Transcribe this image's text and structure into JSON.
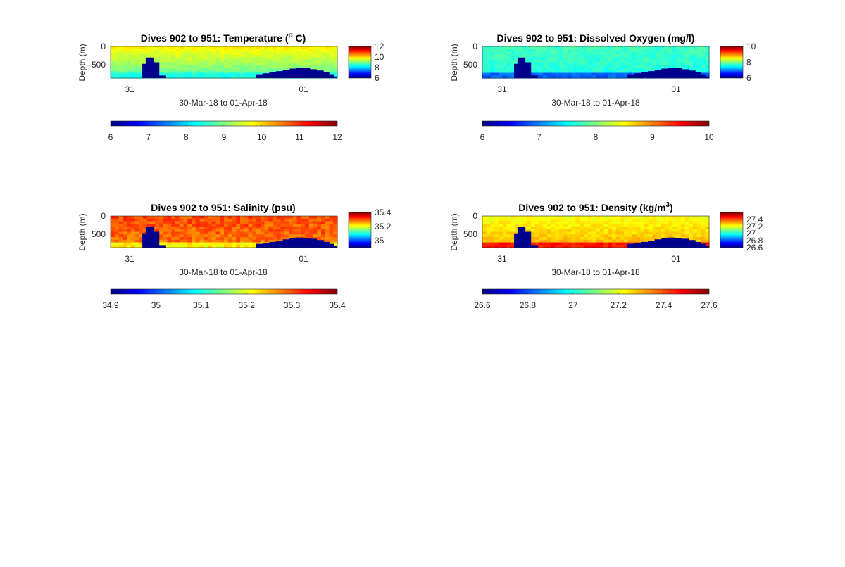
{
  "figure": {
    "colormap": "jet",
    "mask_color": "#00008F",
    "background": "#FFFFFF"
  },
  "chart_data": [
    {
      "type": "heatmap",
      "title": "Dives 902 to 951: Temperature (",
      "title_sup": "o",
      "title_suffix": " C)",
      "xlabel": "30-Mar-18 to 01-Apr-18",
      "ylabel": "Depth (m)",
      "x_ticks": [
        "31",
        "01"
      ],
      "y_ticks": [
        "0",
        "500"
      ],
      "ylim": [
        0,
        800
      ],
      "small_cbar": {
        "clim": [
          6,
          12
        ],
        "ticks": [
          "12",
          "10",
          "8",
          "6"
        ],
        "tick_values": [
          12,
          10,
          8,
          6
        ]
      },
      "large_cbar": {
        "clim": [
          6,
          12
        ],
        "ticks": [
          "6",
          "7",
          "8",
          "9",
          "10",
          "11",
          "12"
        ],
        "tick_values": [
          6,
          7,
          8,
          9,
          10,
          11,
          12
        ]
      },
      "field": {
        "surface_value": 9.8,
        "deep_value": 8.7,
        "near_bottom_value": 8.4,
        "noise": 0.15
      }
    },
    {
      "type": "heatmap",
      "title": "Dives 902 to 951: Dissolved Oxygen (mg/l)",
      "title_sup": "",
      "title_suffix": "",
      "xlabel": "30-Mar-18 to 01-Apr-18",
      "ylabel": "Depth (m)",
      "x_ticks": [
        "31",
        "01"
      ],
      "y_ticks": [
        "0",
        "500"
      ],
      "ylim": [
        0,
        800
      ],
      "small_cbar": {
        "clim": [
          6,
          10
        ],
        "ticks": [
          "10",
          "8",
          "6"
        ],
        "tick_values": [
          10,
          8,
          6
        ]
      },
      "large_cbar": {
        "clim": [
          6,
          10
        ],
        "ticks": [
          "6",
          "7",
          "8",
          "9",
          "10"
        ],
        "tick_values": [
          6,
          7,
          8,
          9,
          10
        ]
      },
      "field": {
        "surface_value": 7.75,
        "deep_value": 7.6,
        "near_bottom_value": 6.9,
        "noise": 0.12
      }
    },
    {
      "type": "heatmap",
      "title": "Dives 902 to 951: Salinity (psu)",
      "title_sup": "",
      "title_suffix": "",
      "xlabel": "30-Mar-18 to 01-Apr-18",
      "ylabel": "Depth (m)",
      "x_ticks": [
        "31",
        "01"
      ],
      "y_ticks": [
        "0",
        "500"
      ],
      "ylim": [
        0,
        800
      ],
      "small_cbar": {
        "clim": [
          34.9,
          35.4
        ],
        "ticks": [
          "35.4",
          "35.2",
          "35"
        ],
        "tick_values": [
          35.4,
          35.2,
          35.0
        ]
      },
      "large_cbar": {
        "clim": [
          34.9,
          35.4
        ],
        "ticks": [
          "34.9",
          "35",
          "35.1",
          "35.2",
          "35.3",
          "35.4"
        ],
        "tick_values": [
          34.9,
          35.0,
          35.1,
          35.2,
          35.3,
          35.4
        ]
      },
      "field": {
        "surface_value": 35.3,
        "deep_value": 35.28,
        "near_bottom_value": 35.22,
        "noise": 0.025
      }
    },
    {
      "type": "heatmap",
      "title": "Dives 902 to 951: Density (kg/m",
      "title_sup": "3",
      "title_suffix": ")",
      "xlabel": "30-Mar-18 to 01-Apr-18",
      "ylabel": "Depth (m)",
      "x_ticks": [
        "31",
        "01"
      ],
      "y_ticks": [
        "0",
        "500"
      ],
      "ylim": [
        0,
        800
      ],
      "small_cbar": {
        "clim": [
          26.6,
          27.6
        ],
        "ticks": [
          "27.4",
          "27.2",
          "27",
          "26.8",
          "26.6"
        ],
        "tick_values": [
          27.4,
          27.2,
          27.0,
          26.8,
          26.6
        ]
      },
      "large_cbar": {
        "clim": [
          26.6,
          27.6
        ],
        "ticks": [
          "26.6",
          "26.8",
          "27",
          "27.2",
          "27.4",
          "27.6"
        ],
        "tick_values": [
          26.6,
          26.8,
          27.0,
          27.2,
          27.4,
          27.6
        ]
      },
      "field": {
        "surface_value": 27.22,
        "deep_value": 27.3,
        "near_bottom_value": 27.45,
        "noise": 0.03
      }
    }
  ]
}
